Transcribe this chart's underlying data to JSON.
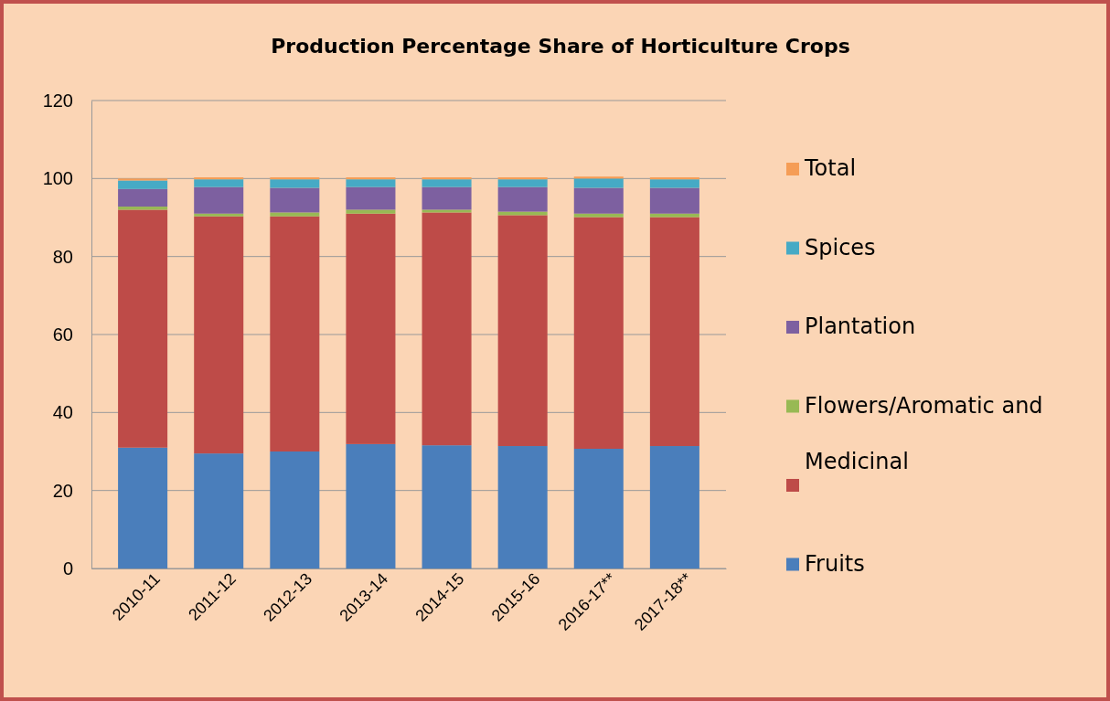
{
  "chart_data": {
    "type": "bar",
    "title": "Production Percentage Share of Horticulture Crops",
    "categories": [
      "2010-11",
      "2011-12",
      "2012-13",
      "2013-14",
      "2014-15",
      "2015-16",
      "2016-17**",
      "2017-18**"
    ],
    "stacked": true,
    "ylim": [
      0,
      120
    ],
    "yticks": [
      0,
      20,
      40,
      60,
      80,
      100,
      120
    ],
    "grid": "y",
    "legend": "right",
    "series": [
      {
        "name": "Fruits",
        "color": "#4a7ebb",
        "values": [
          31,
          29.5,
          30,
          31.9,
          31.6,
          31.4,
          30.7,
          31.4
        ]
      },
      {
        "color": "#be4b48",
        "values": [
          61,
          60.8,
          60.3,
          59.1,
          59.7,
          59.2,
          59.4,
          58.7
        ]
      },
      {
        "name": "Flowers/Aromatic  and Medicinal",
        "color": "#98b954",
        "values": [
          0.8,
          0.7,
          1,
          1,
          0.7,
          0.9,
          0.9,
          0.9
        ]
      },
      {
        "name": "Plantation",
        "color": "#7d60a0",
        "values": [
          4.5,
          6.8,
          6.3,
          5.8,
          5.8,
          6.3,
          6.6,
          6.6
        ]
      },
      {
        "name": "Spices",
        "color": "#46aac5",
        "values": [
          2.2,
          2,
          2.2,
          2,
          2,
          2,
          2.4,
          2.2
        ]
      },
      {
        "name": "Total",
        "color": "#f59d56",
        "values": [
          0.5,
          0.5,
          0.5,
          0.5,
          0.5,
          0.5,
          0.5,
          0.5
        ]
      }
    ]
  }
}
